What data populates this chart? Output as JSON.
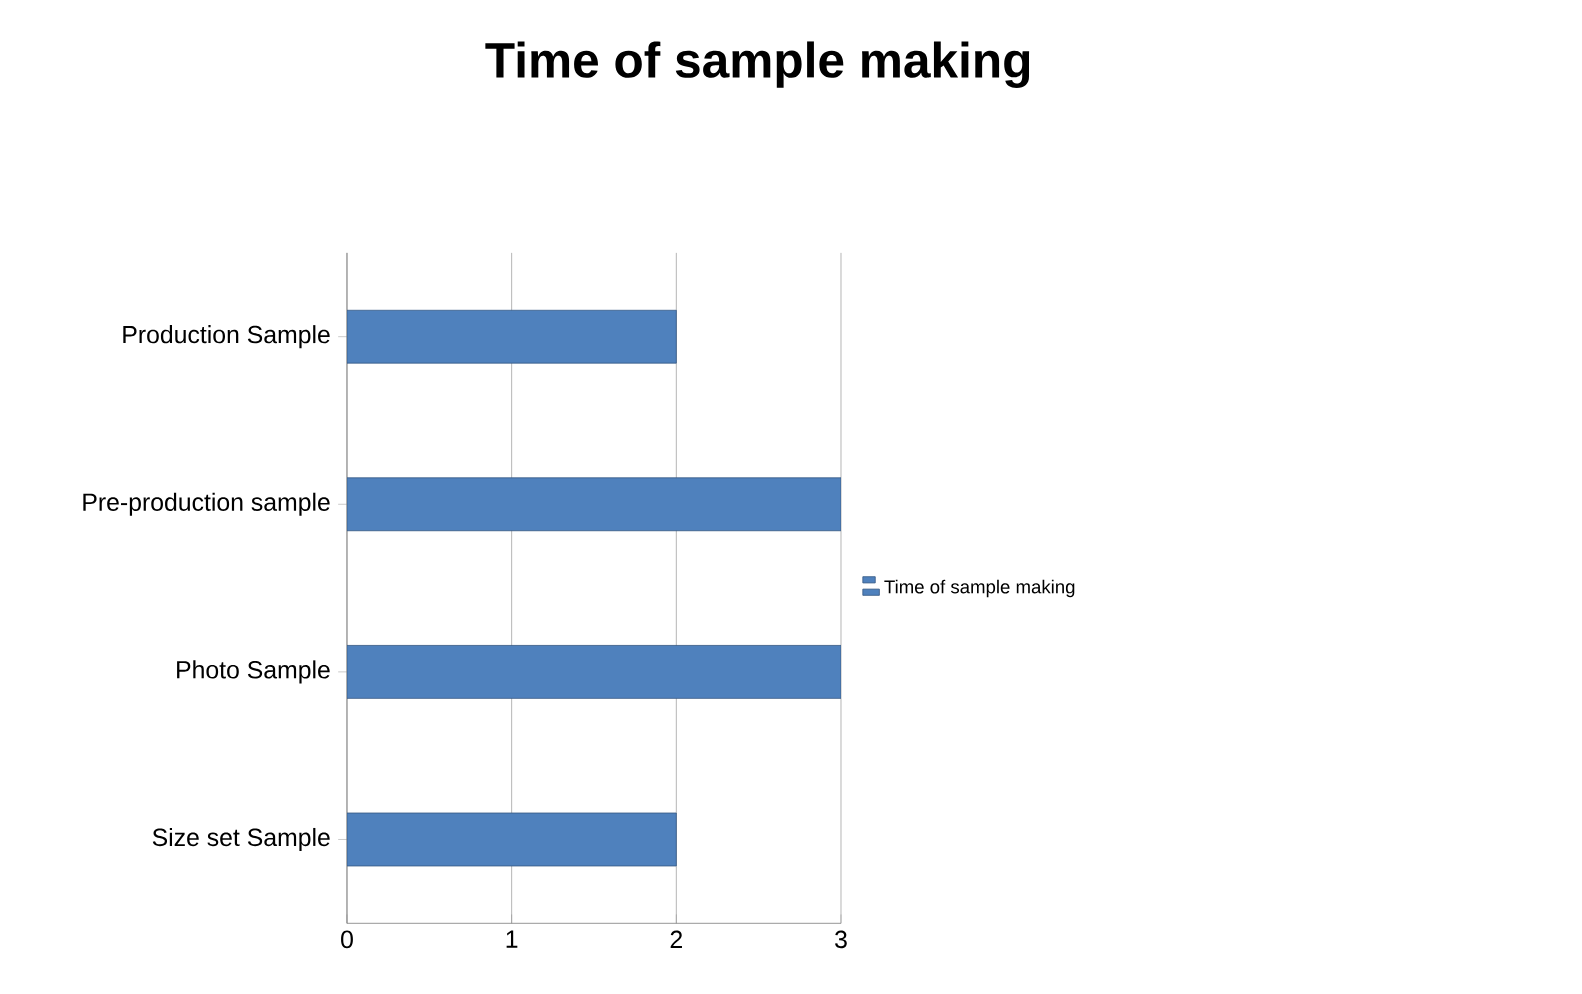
{
  "chart_data": {
    "type": "bar",
    "orientation": "horizontal",
    "title": "Time of sample making",
    "categories": [
      "Production Sample",
      "Pre-production sample",
      "Photo Sample",
      "Size set Sample"
    ],
    "series": [
      {
        "name": "Time of sample making",
        "color": "#4f81bd",
        "values": [
          2,
          3,
          3,
          2
        ]
      }
    ],
    "xlim": [
      0,
      3
    ],
    "xticks": [
      0,
      1,
      2,
      3
    ],
    "grid": "x",
    "legend": "right"
  }
}
